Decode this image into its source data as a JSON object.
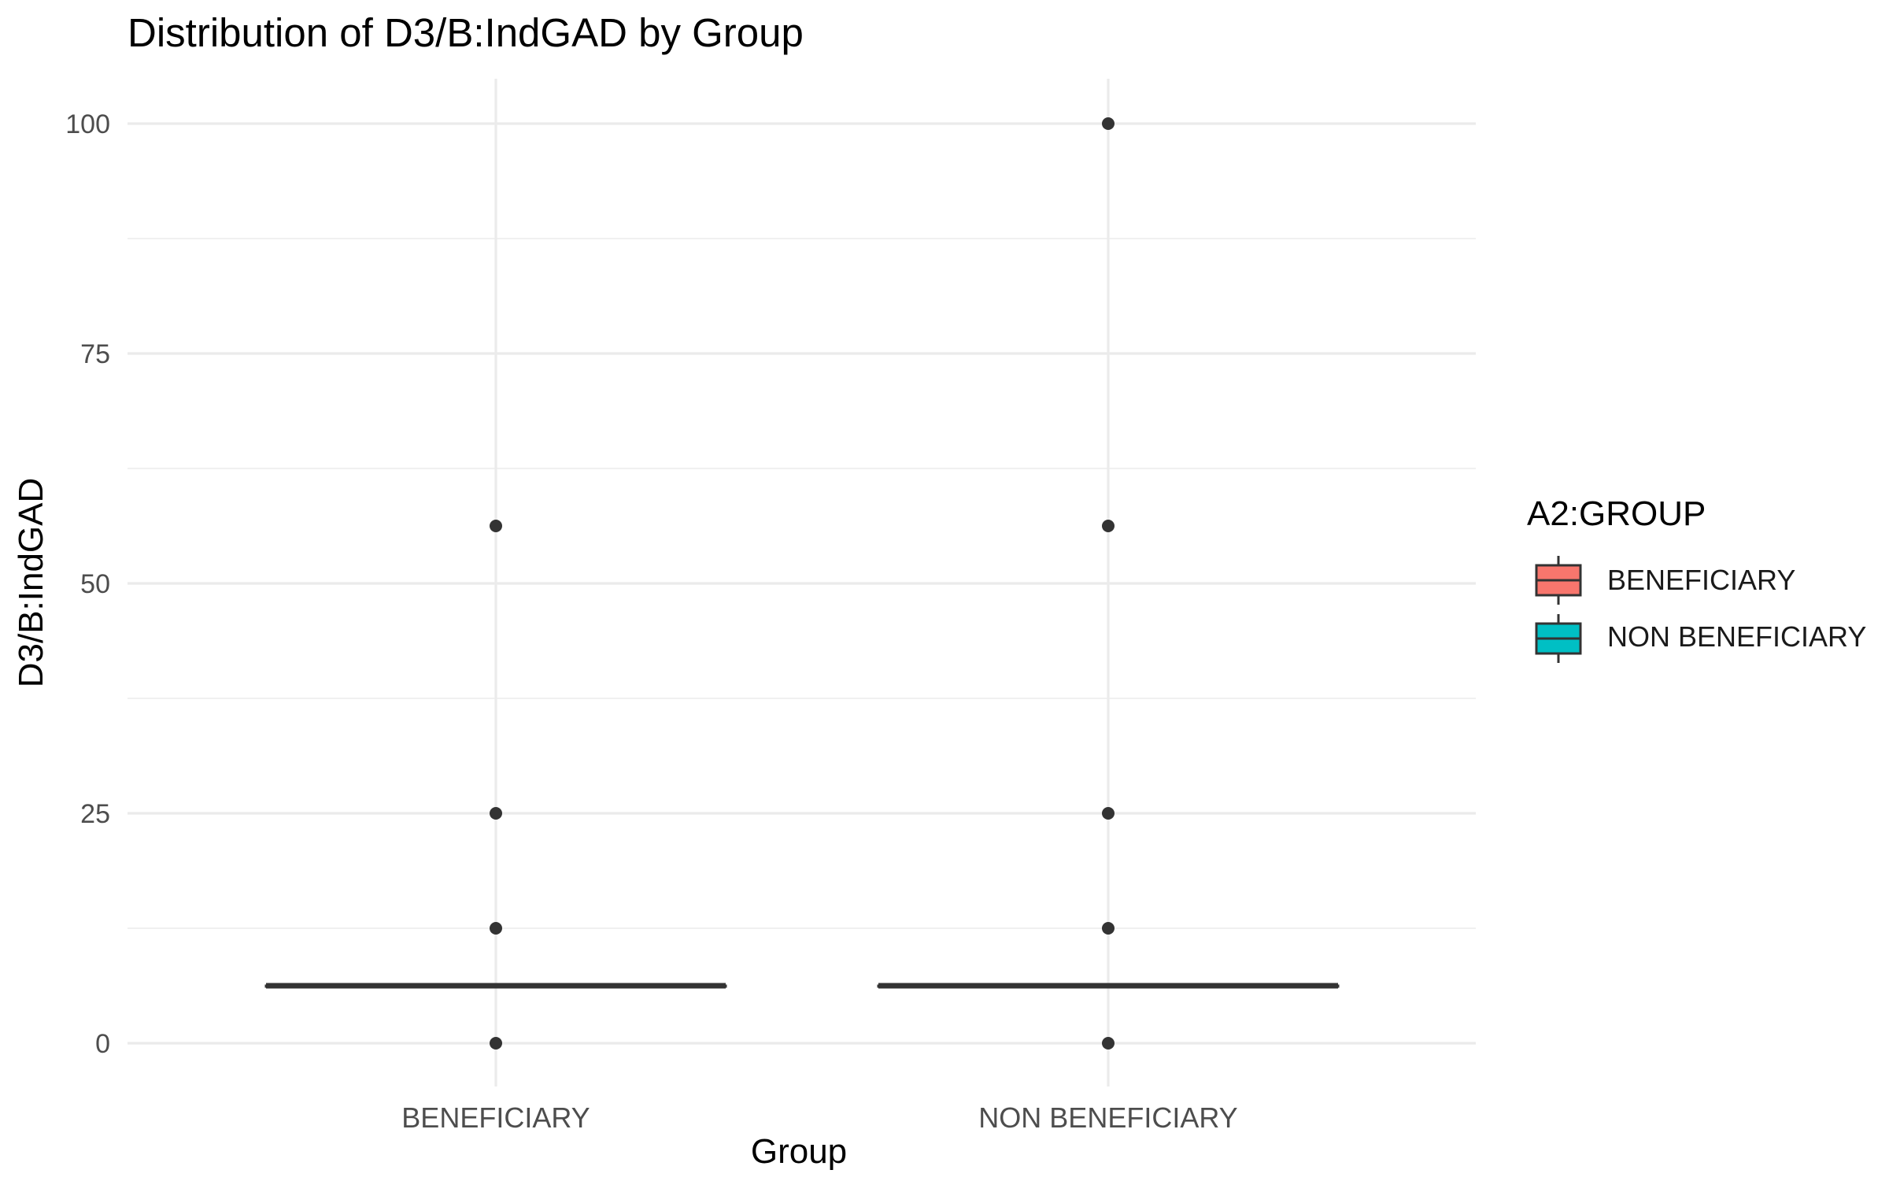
{
  "chart_data": {
    "type": "box",
    "title": "Distribution of D3/B:IndGAD by Group",
    "xlabel": "Group",
    "ylabel": "D3/B:IndGAD",
    "categories": [
      "BENEFICIARY",
      "NON BENEFICIARY"
    ],
    "ylim": [
      -5,
      105
    ],
    "yticks": [
      0,
      25,
      50,
      75,
      100
    ],
    "yticks_minor": [
      12.5,
      37.5,
      62.5,
      87.5
    ],
    "grid": true,
    "legend": {
      "title": "A2:GROUP",
      "position": "right",
      "entries": [
        {
          "label": "BENEFICIARY",
          "color": "#F8766D"
        },
        {
          "label": "NON BENEFICIARY",
          "color": "#00BFC4"
        }
      ]
    },
    "boxes": [
      {
        "category": "BENEFICIARY",
        "q1": 6.25,
        "median": 6.25,
        "q3": 6.25,
        "whisker_low": 6.25,
        "whisker_high": 6.25,
        "color": "#F8766D",
        "outliers": [
          0,
          12.5,
          25,
          56.25
        ]
      },
      {
        "category": "NON BENEFICIARY",
        "q1": 6.25,
        "median": 6.25,
        "q3": 6.25,
        "whisker_low": 6.25,
        "whisker_high": 6.25,
        "color": "#00BFC4",
        "outliers": [
          0,
          12.5,
          25,
          56.25,
          100
        ]
      }
    ]
  }
}
